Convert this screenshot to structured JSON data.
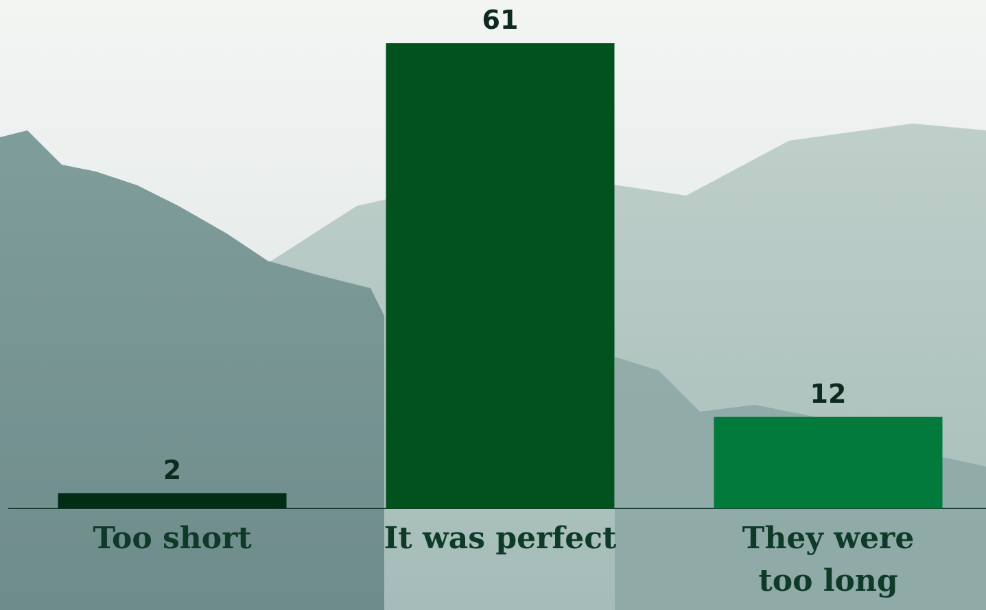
{
  "chart_data": {
    "type": "bar",
    "categories": [
      "Too short",
      "It was perfect",
      "They were too long"
    ],
    "values": [
      2,
      61,
      12
    ],
    "colors": [
      "#012d15",
      "#02521e",
      "#017a3b"
    ]
  }
}
